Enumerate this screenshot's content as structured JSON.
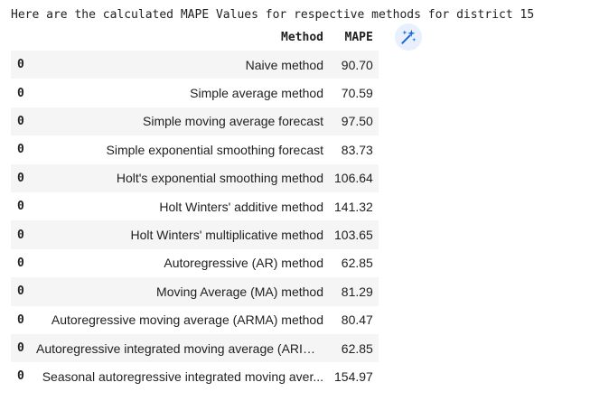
{
  "output": {
    "message": "Here are the calculated MAPE Values for respective methods for district 15"
  },
  "table": {
    "columns": {
      "index": "",
      "method": "Method",
      "mape": "MAPE"
    },
    "rows": [
      {
        "index": "0",
        "method": "Naive method",
        "mape": "90.70"
      },
      {
        "index": "0",
        "method": "Simple average method",
        "mape": "70.59"
      },
      {
        "index": "0",
        "method": "Simple moving average forecast",
        "mape": "97.50"
      },
      {
        "index": "0",
        "method": "Simple exponential smoothing forecast",
        "mape": "83.73"
      },
      {
        "index": "0",
        "method": "Holt's exponential smoothing method",
        "mape": "106.64"
      },
      {
        "index": "0",
        "method": "Holt Winters' additive method",
        "mape": "141.32"
      },
      {
        "index": "0",
        "method": "Holt Winters' multiplicative method",
        "mape": "103.65"
      },
      {
        "index": "0",
        "method": "Autoregressive (AR) method",
        "mape": "62.85"
      },
      {
        "index": "0",
        "method": "Moving Average (MA) method",
        "mape": "81.29"
      },
      {
        "index": "0",
        "method": "Autoregressive moving average (ARMA) method",
        "mape": "80.47"
      },
      {
        "index": "0",
        "method": "Autoregressive integrated moving average (ARIM...",
        "mape": "62.85"
      },
      {
        "index": "0",
        "method": "Seasonal autoregressive integrated moving aver...",
        "mape": "154.97"
      }
    ]
  },
  "toolbar": {
    "magic_icon": "magic-wand-sparkle-icon",
    "accent_color": "#1967d2",
    "button_bg": "#e8f0fe"
  }
}
